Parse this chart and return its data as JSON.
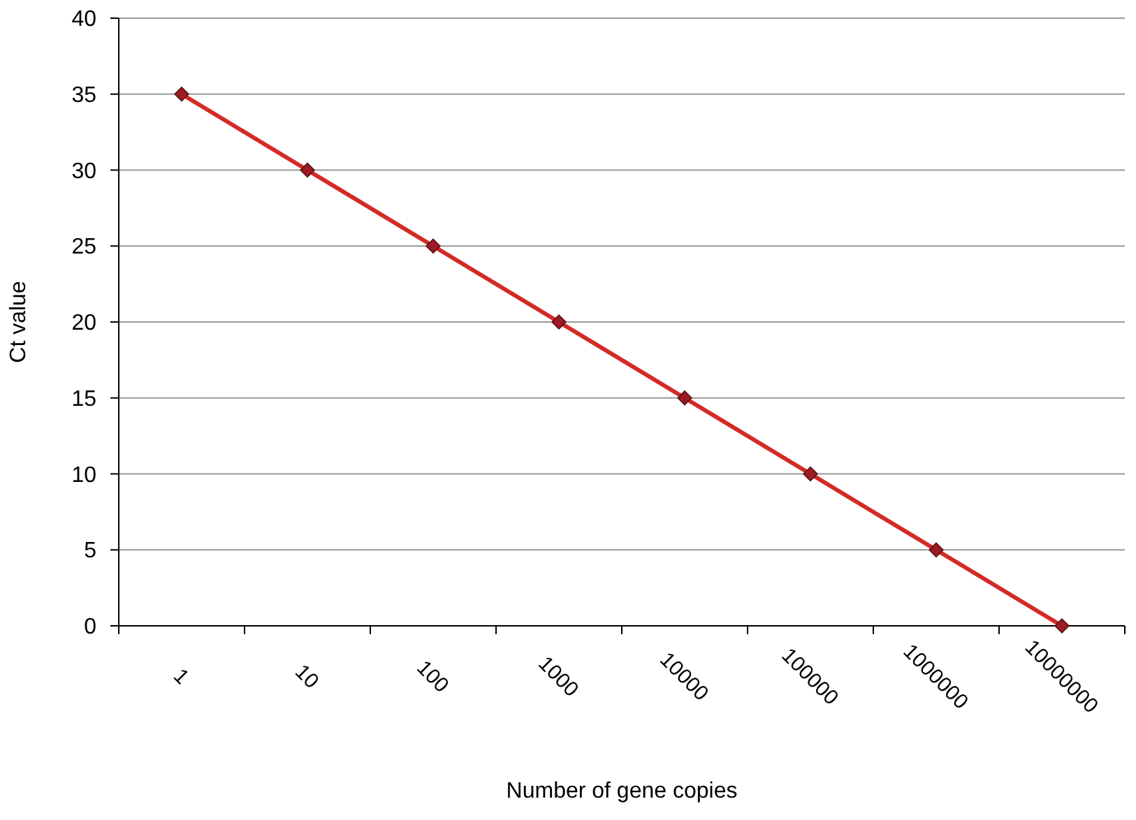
{
  "chart_data": {
    "type": "line",
    "xlabel": "Number of gene copies",
    "ylabel": "Ct value",
    "categories": [
      "1",
      "10",
      "100",
      "1000",
      "10000",
      "100000",
      "1000000",
      "10000000"
    ],
    "series": [
      {
        "color": "#d42a26",
        "values": [
          35,
          30,
          25,
          20,
          15,
          10,
          5,
          0
        ]
      }
    ],
    "ylim": [
      0,
      40
    ],
    "yticks": [
      0,
      5,
      10,
      15,
      20,
      25,
      30,
      35,
      40
    ],
    "grid": "y",
    "marker": "diamond",
    "line_style": "solid"
  }
}
